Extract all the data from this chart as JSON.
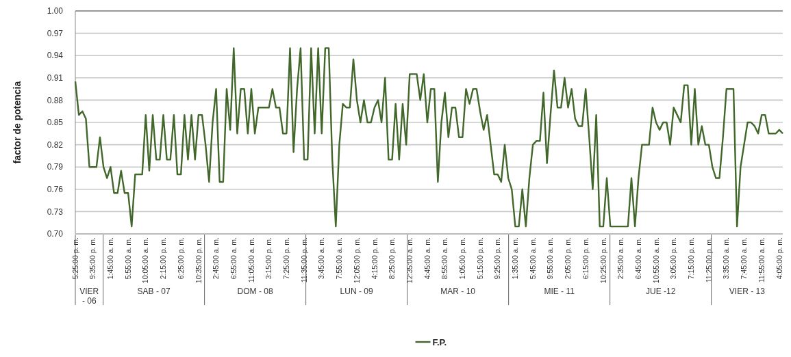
{
  "chart_data": {
    "type": "line",
    "ylabel": "factor de potencia",
    "legend": "bottom",
    "grid": "y",
    "ylim": [
      0.7,
      1.0
    ],
    "yticks": [
      {
        "value": 0.7,
        "label": "0.70"
      },
      {
        "value": 0.73,
        "label": "0.73"
      },
      {
        "value": 0.76,
        "label": "0.76"
      },
      {
        "value": 0.79,
        "label": "0.79"
      },
      {
        "value": 0.82,
        "label": "0.82"
      },
      {
        "value": 0.85,
        "label": "0.85"
      },
      {
        "value": 0.88,
        "label": "0.88"
      },
      {
        "value": 0.91,
        "label": "0.91"
      },
      {
        "value": 0.94,
        "label": "0.94"
      },
      {
        "value": 0.97,
        "label": "0.97"
      },
      {
        "value": 1.0,
        "label": "1.00"
      }
    ],
    "categories": [
      "5:25:00 p. m.",
      null,
      null,
      null,
      null,
      "9:35:00 p. m.",
      null,
      null,
      null,
      null,
      "1:45:00 a. m.",
      null,
      null,
      null,
      null,
      "5:55:00 a. m.",
      null,
      null,
      null,
      null,
      "10:05:00 a. m.",
      null,
      null,
      null,
      null,
      "2:15:00 p. m.",
      null,
      null,
      null,
      null,
      "6:25:00 p. m.",
      null,
      null,
      null,
      null,
      "10:35:00 p. m.",
      null,
      null,
      null,
      null,
      "2:45:00 a. m.",
      null,
      null,
      null,
      null,
      "6:55:00 a. m.",
      null,
      null,
      null,
      null,
      "11:05:00 a. m.",
      null,
      null,
      null,
      null,
      "3:15:00 p. m.",
      null,
      null,
      null,
      null,
      "7:25:00 p. m.",
      null,
      null,
      null,
      null,
      "11:35:00 p. m.",
      null,
      null,
      null,
      null,
      "3:45:00 a. m.",
      null,
      null,
      null,
      null,
      "7:55:00 a. m.",
      null,
      null,
      null,
      null,
      "12:05:00 p. m.",
      null,
      null,
      null,
      null,
      "4:15:00 p. m.",
      null,
      null,
      null,
      null,
      "8:25:00 p. m.",
      null,
      null,
      null,
      null,
      "12:35:00 a. m.",
      null,
      null,
      null,
      null,
      "4:45:00 a. m.",
      null,
      null,
      null,
      null,
      "8:55:00 a. m.",
      null,
      null,
      null,
      null,
      "1:05:00 p. m.",
      null,
      null,
      null,
      null,
      "5:15:00 p. m.",
      null,
      null,
      null,
      null,
      "9:25:00 p. m.",
      null,
      null,
      null,
      null,
      "1:35:00 a. m.",
      null,
      null,
      null,
      null,
      "5:45:00 a. m.",
      null,
      null,
      null,
      null,
      "9:55:00 a. m.",
      null,
      null,
      null,
      null,
      "2:05:00 p. m.",
      null,
      null,
      null,
      null,
      "6:15:00 p. m.",
      null,
      null,
      null,
      null,
      "10:25:00 p. m.",
      null,
      null,
      null,
      null,
      "2:35:00 a. m.",
      null,
      null,
      null,
      null,
      "6:45:00 a. m.",
      null,
      null,
      null,
      null,
      "10:55:00 a. m.",
      null,
      null,
      null,
      null,
      "3:05:00 p. m.",
      null,
      null,
      null,
      null,
      "7:15:00 p. m.",
      null,
      null,
      null,
      null,
      "11:25:00 p. m.",
      null,
      null,
      null,
      null,
      "3:35:00 a. m.",
      null,
      null,
      null,
      null,
      "7:45:00 a. m.",
      null,
      null,
      null,
      null,
      "11:55:00 a. m.",
      null,
      null,
      null,
      null,
      "4:05:00 p. m.",
      null
    ],
    "annotations": [
      "VIER - 06",
      "SAB - 07",
      "DOM - 08",
      "LUN - 09",
      "MAR - 10",
      "MIE - 11",
      "JUE -12",
      "VIER - 13"
    ],
    "series": [
      {
        "name": "F.P.",
        "color": "#41682a",
        "values": [
          0.905,
          0.86,
          0.865,
          0.855,
          0.79,
          0.79,
          0.79,
          0.83,
          0.79,
          0.775,
          0.79,
          0.755,
          0.755,
          0.785,
          0.755,
          0.755,
          0.71,
          0.78,
          0.78,
          0.78,
          0.86,
          0.785,
          0.86,
          0.8,
          0.8,
          0.86,
          0.8,
          0.8,
          0.86,
          0.78,
          0.78,
          0.86,
          0.8,
          0.86,
          0.8,
          0.86,
          0.86,
          0.82,
          0.77,
          0.85,
          0.895,
          0.77,
          0.77,
          0.895,
          0.84,
          0.95,
          0.835,
          0.895,
          0.895,
          0.835,
          0.895,
          0.835,
          0.87,
          0.87,
          0.87,
          0.87,
          0.895,
          0.87,
          0.87,
          0.835,
          0.835,
          0.95,
          0.81,
          0.895,
          0.95,
          0.8,
          0.8,
          0.95,
          0.835,
          0.95,
          0.835,
          0.95,
          0.95,
          0.8,
          0.71,
          0.82,
          0.875,
          0.87,
          0.87,
          0.935,
          0.88,
          0.85,
          0.88,
          0.85,
          0.85,
          0.87,
          0.88,
          0.85,
          0.91,
          0.8,
          0.8,
          0.875,
          0.8,
          0.875,
          0.82,
          0.915,
          0.915,
          0.915,
          0.88,
          0.915,
          0.85,
          0.895,
          0.895,
          0.77,
          0.85,
          0.89,
          0.83,
          0.87,
          0.87,
          0.83,
          0.83,
          0.895,
          0.875,
          0.895,
          0.895,
          0.865,
          0.84,
          0.86,
          0.82,
          0.78,
          0.78,
          0.77,
          0.82,
          0.775,
          0.76,
          0.71,
          0.71,
          0.76,
          0.71,
          0.775,
          0.82,
          0.825,
          0.825,
          0.89,
          0.795,
          0.86,
          0.92,
          0.87,
          0.87,
          0.91,
          0.87,
          0.895,
          0.855,
          0.845,
          0.845,
          0.895,
          0.83,
          0.76,
          0.86,
          0.71,
          0.71,
          0.775,
          0.71,
          0.71,
          0.71,
          0.71,
          0.71,
          0.71,
          0.775,
          0.71,
          0.775,
          0.82,
          0.82,
          0.82,
          0.87,
          0.85,
          0.84,
          0.85,
          0.85,
          0.82,
          0.87,
          0.86,
          0.85,
          0.9,
          0.9,
          0.82,
          0.895,
          0.82,
          0.845,
          0.82,
          0.82,
          0.79,
          0.775,
          0.775,
          0.83,
          0.895,
          0.895,
          0.895,
          0.71,
          0.79,
          0.82,
          0.85,
          0.85,
          0.845,
          0.835,
          0.86,
          0.86,
          0.835,
          0.835,
          0.835,
          0.84,
          0.835
        ]
      }
    ]
  }
}
